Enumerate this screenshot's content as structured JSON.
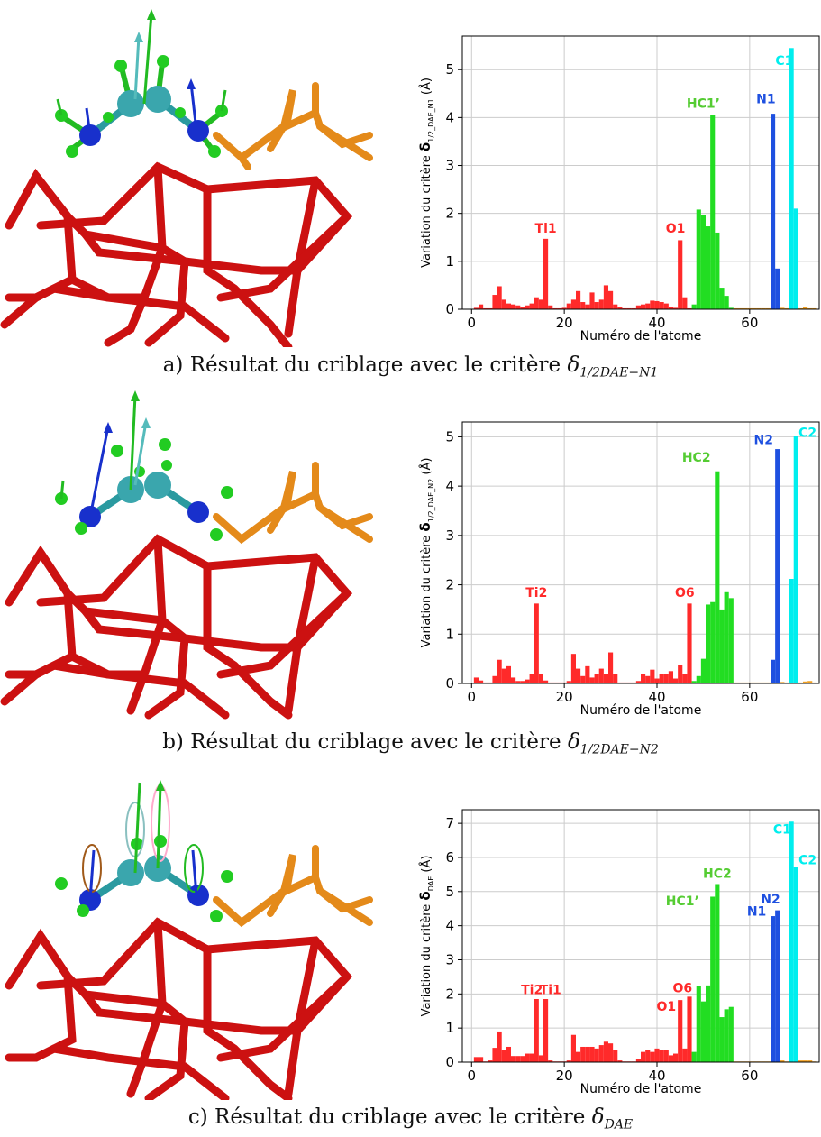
{
  "panels": [
    {
      "caption_prefix": "a) Résultat du criblage avec le critère ",
      "caption_symbol": "δ",
      "caption_subscript": "1/2DAE−N1",
      "chart_data": {
        "type": "bar",
        "ylabel_prefix": "Variation du critère ",
        "ylabel_symbol": "δ",
        "ylabel_subscript": "1/2_DAE_N1",
        "ylabel_suffix": " (Å)",
        "xlabel": "Numéro de l'atome",
        "xlim": [
          -2,
          75
        ],
        "ylim": [
          0,
          5.7
        ],
        "xticks": [
          0,
          20,
          40,
          60
        ],
        "yticks": [
          0,
          1,
          2,
          3,
          4,
          5
        ],
        "grid": true,
        "series": [
          {
            "color": "#ff2a2a",
            "x": [
              1,
              2,
              3,
              4,
              5,
              6,
              7,
              8,
              9,
              10,
              11,
              12,
              13,
              14,
              15,
              16,
              17,
              18,
              19,
              20,
              21,
              22,
              23,
              24,
              25,
              26,
              27,
              28,
              29,
              30,
              31,
              32,
              33,
              34,
              35,
              36,
              37,
              38,
              39,
              40,
              41,
              42,
              43,
              44,
              45,
              46,
              47
            ],
            "values": [
              0.03,
              0.1,
              0.02,
              0.02,
              0.3,
              0.48,
              0.2,
              0.12,
              0.1,
              0.08,
              0.05,
              0.08,
              0.12,
              0.25,
              0.2,
              1.47,
              0.08,
              0.02,
              0.02,
              0.03,
              0.12,
              0.2,
              0.38,
              0.15,
              0.1,
              0.35,
              0.15,
              0.2,
              0.5,
              0.38,
              0.1,
              0.04,
              0.02,
              0.02,
              0.02,
              0.08,
              0.1,
              0.12,
              0.18,
              0.17,
              0.15,
              0.12,
              0.05,
              0.03,
              1.44,
              0.25,
              0.02
            ]
          },
          {
            "color": "#22dd22",
            "x": [
              48,
              49,
              50,
              51,
              52,
              53,
              54,
              55,
              56
            ],
            "values": [
              0.1,
              2.08,
              1.97,
              1.73,
              4.06,
              1.6,
              0.45,
              0.28,
              0.03
            ]
          },
          {
            "color": "#1e50e0",
            "x": [
              65,
              66
            ],
            "values": [
              4.08,
              0.85
            ]
          },
          {
            "color": "#00eeee",
            "x": [
              69,
              70
            ],
            "values": [
              5.45,
              2.1
            ]
          },
          {
            "color": "#f2a020",
            "x": [
              57,
              58,
              59,
              60,
              61,
              62,
              63,
              64,
              67,
              68,
              71,
              72,
              73,
              74
            ],
            "values": [
              0.02,
              0.02,
              0.02,
              0.02,
              0.02,
              0.02,
              0.02,
              0.02,
              0.03,
              0.02,
              0.02,
              0.04,
              0.02,
              0.02
            ]
          }
        ],
        "annotations": [
          {
            "text": "Ti1",
            "x": 16,
            "y": 1.6,
            "color": "#ff2a2a"
          },
          {
            "text": "O1",
            "x": 44,
            "y": 1.6,
            "color": "#ff2a2a"
          },
          {
            "text": "HC1’",
            "x": 50,
            "y": 4.2,
            "color": "#55cc33"
          },
          {
            "text": "N1",
            "x": 63.5,
            "y": 4.3,
            "color": "#1e50e0"
          },
          {
            "text": "C1",
            "x": 67.5,
            "y": 5.1,
            "color": "#00eeee"
          }
        ]
      }
    },
    {
      "caption_prefix": "b) Résultat du criblage avec le critère ",
      "caption_symbol": "δ",
      "caption_subscript": "1/2DAE−N2",
      "chart_data": {
        "type": "bar",
        "ylabel_prefix": "Variation du critère ",
        "ylabel_symbol": "δ",
        "ylabel_subscript": "1/2_DAE_N2",
        "ylabel_suffix": " (Å)",
        "xlabel": "Numéro de l'atome",
        "xlim": [
          -2,
          75
        ],
        "ylim": [
          0,
          5.3
        ],
        "xticks": [
          0,
          20,
          40,
          60
        ],
        "yticks": [
          0,
          1,
          2,
          3,
          4,
          5
        ],
        "grid": true,
        "series": [
          {
            "color": "#ff2a2a",
            "x": [
              1,
              2,
              3,
              4,
              5,
              6,
              7,
              8,
              9,
              10,
              11,
              12,
              13,
              14,
              15,
              16,
              17,
              18,
              19,
              20,
              21,
              22,
              23,
              24,
              25,
              26,
              27,
              28,
              29,
              30,
              31,
              32,
              33,
              34,
              35,
              36,
              37,
              38,
              39,
              40,
              41,
              42,
              43,
              44,
              45,
              46,
              47
            ],
            "values": [
              0.12,
              0.06,
              0.02,
              0.02,
              0.15,
              0.48,
              0.3,
              0.35,
              0.12,
              0.05,
              0.05,
              0.08,
              0.2,
              1.62,
              0.2,
              0.06,
              0.02,
              0.02,
              0.02,
              0.02,
              0.05,
              0.6,
              0.3,
              0.15,
              0.35,
              0.12,
              0.2,
              0.3,
              0.2,
              0.63,
              0.2,
              0.02,
              0.02,
              0.02,
              0.02,
              0.05,
              0.2,
              0.15,
              0.28,
              0.1,
              0.2,
              0.2,
              0.25,
              0.1,
              0.38,
              0.2,
              1.62
            ]
          },
          {
            "color": "#22dd22",
            "x": [
              48,
              49,
              50,
              51,
              52,
              53,
              54,
              55,
              56
            ],
            "values": [
              0.05,
              0.15,
              0.5,
              1.6,
              1.65,
              4.3,
              1.5,
              1.85,
              1.73
            ]
          },
          {
            "color": "#1e50e0",
            "x": [
              65,
              66
            ],
            "values": [
              0.48,
              4.75
            ]
          },
          {
            "color": "#00eeee",
            "x": [
              69,
              70
            ],
            "values": [
              2.12,
              5.02
            ]
          },
          {
            "color": "#f2a020",
            "x": [
              57,
              58,
              59,
              60,
              61,
              62,
              63,
              64,
              67,
              68,
              71,
              72,
              73,
              74
            ],
            "values": [
              0.02,
              0.02,
              0.02,
              0.02,
              0.02,
              0.02,
              0.02,
              0.02,
              0.03,
              0.02,
              0.02,
              0.04,
              0.05,
              0.02
            ]
          }
        ],
        "annotations": [
          {
            "text": "Ti2",
            "x": 14,
            "y": 1.75,
            "color": "#ff2a2a"
          },
          {
            "text": "O6",
            "x": 46,
            "y": 1.75,
            "color": "#ff2a2a"
          },
          {
            "text": "HC2",
            "x": 48.5,
            "y": 4.5,
            "color": "#55cc33"
          },
          {
            "text": "N2",
            "x": 63,
            "y": 4.85,
            "color": "#1e50e0"
          },
          {
            "text": "C2",
            "x": 72.5,
            "y": 5.0,
            "color": "#00eeee"
          }
        ]
      }
    },
    {
      "caption_prefix": "c) Résultat du criblage avec le critère ",
      "caption_symbol": "δ",
      "caption_subscript": "DAE",
      "chart_data": {
        "type": "bar",
        "ylabel_prefix": "Variation du critère ",
        "ylabel_symbol": "δ",
        "ylabel_subscript": "DAE",
        "ylabel_suffix": " (Å)",
        "xlabel": "Numéro de l'atome",
        "xlim": [
          -2,
          75
        ],
        "ylim": [
          0,
          7.4
        ],
        "xticks": [
          0,
          20,
          40,
          60
        ],
        "yticks": [
          0,
          1,
          2,
          3,
          4,
          5,
          6,
          7
        ],
        "grid": true,
        "series": [
          {
            "color": "#ff2a2a",
            "x": [
              1,
              2,
              3,
              4,
              5,
              6,
              7,
              8,
              9,
              10,
              11,
              12,
              13,
              14,
              15,
              16,
              17,
              18,
              19,
              20,
              21,
              22,
              23,
              24,
              25,
              26,
              27,
              28,
              29,
              30,
              31,
              32,
              33,
              34,
              35,
              36,
              37,
              38,
              39,
              40,
              41,
              42,
              43,
              44,
              45,
              46,
              47
            ],
            "values": [
              0.15,
              0.15,
              0.02,
              0.05,
              0.42,
              0.9,
              0.35,
              0.45,
              0.18,
              0.18,
              0.18,
              0.25,
              0.25,
              1.85,
              0.2,
              1.85,
              0.05,
              0.02,
              0.02,
              0.02,
              0.05,
              0.8,
              0.3,
              0.45,
              0.45,
              0.45,
              0.4,
              0.5,
              0.6,
              0.55,
              0.35,
              0.05,
              0.02,
              0.02,
              0.02,
              0.1,
              0.3,
              0.35,
              0.3,
              0.4,
              0.35,
              0.35,
              0.2,
              0.25,
              1.82,
              0.4,
              1.92
            ]
          },
          {
            "color": "#22dd22",
            "x": [
              48,
              49,
              50,
              51,
              52,
              53,
              54,
              55,
              56
            ],
            "values": [
              0.3,
              2.22,
              1.78,
              2.25,
              4.85,
              5.22,
              1.32,
              1.55,
              1.62
            ]
          },
          {
            "color": "#1e50e0",
            "x": [
              65,
              66
            ],
            "values": [
              4.28,
              4.45
            ]
          },
          {
            "color": "#00eeee",
            "x": [
              69,
              70
            ],
            "values": [
              7.05,
              5.72
            ]
          },
          {
            "color": "#f2a020",
            "x": [
              57,
              58,
              59,
              60,
              61,
              62,
              63,
              64,
              67,
              68,
              71,
              72,
              73,
              74
            ],
            "values": [
              0.02,
              0.02,
              0.02,
              0.02,
              0.02,
              0.02,
              0.02,
              0.02,
              0.05,
              0.02,
              0.05,
              0.05,
              0.05,
              0.02
            ]
          }
        ],
        "annotations": [
          {
            "text": "Ti2",
            "x": 13,
            "y": 2.0,
            "color": "#ff2a2a"
          },
          {
            "text": "Ti1",
            "x": 17,
            "y": 2.0,
            "color": "#ff2a2a"
          },
          {
            "text": "O6",
            "x": 45.5,
            "y": 2.05,
            "color": "#ff2a2a"
          },
          {
            "text": "O1",
            "x": 42,
            "y": 1.5,
            "color": "#ff2a2a"
          },
          {
            "text": "HC2",
            "x": 53,
            "y": 5.4,
            "color": "#55cc33"
          },
          {
            "text": "HC1’",
            "x": 45.5,
            "y": 4.6,
            "color": "#55cc33"
          },
          {
            "text": "N2",
            "x": 64.5,
            "y": 4.65,
            "color": "#1e50e0"
          },
          {
            "text": "N1",
            "x": 61.5,
            "y": 4.3,
            "color": "#1e50e0"
          },
          {
            "text": "C1",
            "x": 67,
            "y": 6.7,
            "color": "#00eeee"
          },
          {
            "text": "C2",
            "x": 72.5,
            "y": 5.8,
            "color": "#00eeee"
          }
        ]
      }
    }
  ]
}
